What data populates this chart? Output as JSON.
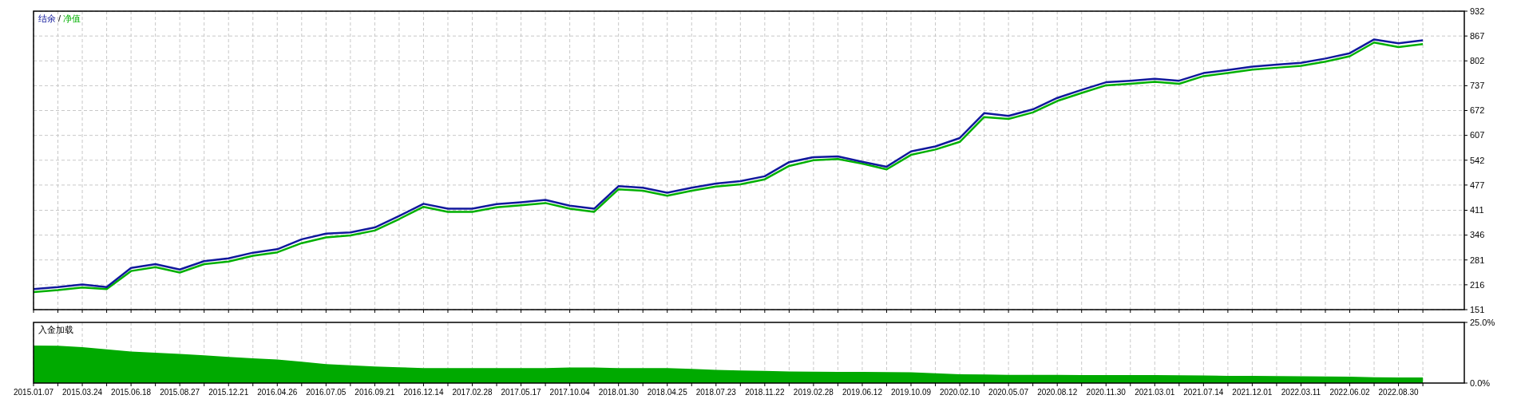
{
  "chart_data": [
    {
      "type": "line",
      "ylim": [
        151,
        932
      ],
      "yticks": [
        151,
        216,
        281,
        346,
        411,
        477,
        542,
        607,
        672,
        737,
        802,
        867,
        932
      ],
      "categories": [
        "2015.01.07",
        null,
        "2015.03.24",
        null,
        "2015.06.18",
        null,
        "2015.08.27",
        null,
        "2015.12.21",
        null,
        "2016.04.26",
        null,
        "2016.07.05",
        null,
        "2016.09.21",
        null,
        "2016.12.14",
        null,
        "2017.02.28",
        null,
        "2017.05.17",
        null,
        "2017.10.04",
        null,
        "2018.01.30",
        null,
        "2018.04.25",
        null,
        "2018.07.23",
        null,
        "2018.11.22",
        null,
        "2019.02.28",
        null,
        "2019.06.12",
        null,
        "2019.10.09",
        null,
        "2020.02.10",
        null,
        "2020.05.07",
        null,
        "2020.08.12",
        null,
        "2020.11.30",
        null,
        "2021.03.01",
        null,
        "2021.07.14",
        null,
        "2021.12.01",
        null,
        "2022.03.11",
        null,
        "2022.06.02",
        null,
        "2022.08.30",
        null
      ],
      "tick_labels": "y",
      "grid": true,
      "line_style": "solid",
      "marker": "none",
      "annotations": [
        "/"
      ],
      "series": [
        {
          "name": "净值",
          "color": "#00b000",
          "values": [
            197,
            202,
            209,
            205,
            252,
            262,
            248,
            270,
            277,
            292,
            301,
            325,
            340,
            345,
            358,
            388,
            420,
            407,
            407,
            419,
            424,
            430,
            415,
            407,
            466,
            462,
            449,
            462,
            473,
            479,
            492,
            527,
            542,
            545,
            533,
            518,
            556,
            570,
            590,
            655,
            650,
            667,
            697,
            718,
            738,
            742,
            747,
            742,
            762,
            770,
            779,
            784,
            789,
            800,
            814,
            850,
            838,
            846
          ]
        },
        {
          "name": "结余",
          "color": "#10189c",
          "values": [
            205,
            210,
            217,
            210,
            260,
            270,
            256,
            278,
            285,
            300,
            309,
            335,
            350,
            353,
            366,
            396,
            428,
            415,
            415,
            427,
            432,
            438,
            423,
            415,
            474,
            470,
            457,
            470,
            481,
            487,
            500,
            537,
            550,
            552,
            538,
            525,
            565,
            578,
            600,
            665,
            658,
            675,
            705,
            726,
            746,
            750,
            755,
            750,
            770,
            778,
            787,
            792,
            797,
            808,
            822,
            858,
            848,
            856
          ]
        }
      ]
    },
    {
      "type": "area",
      "title": "入金加载",
      "ylim": [
        0,
        25
      ],
      "yticks": [
        {
          "value": 0,
          "label": "0.0%"
        },
        {
          "value": 25,
          "label": "25.0%"
        }
      ],
      "categories": [
        "2015.01.07",
        null,
        "2015.03.24",
        null,
        "2015.06.18",
        null,
        "2015.08.27",
        null,
        "2015.12.21",
        null,
        "2016.04.26",
        null,
        "2016.07.05",
        null,
        "2016.09.21",
        null,
        "2016.12.14",
        null,
        "2017.02.28",
        null,
        "2017.05.17",
        null,
        "2017.10.04",
        null,
        "2018.01.30",
        null,
        "2018.04.25",
        null,
        "2018.07.23",
        null,
        "2018.11.22",
        null,
        "2019.02.28",
        null,
        "2019.06.12",
        null,
        "2019.10.09",
        null,
        "2020.02.10",
        null,
        "2020.05.07",
        null,
        "2020.08.12",
        null,
        "2020.11.30",
        null,
        "2021.03.01",
        null,
        "2021.07.14",
        null,
        "2021.12.01",
        null,
        "2022.03.11",
        null,
        "2022.06.02",
        null,
        "2022.08.30",
        null
      ],
      "grid": "x",
      "color": "#00aa00",
      "values": [
        15.5,
        15.4,
        14.8,
        13.9,
        13,
        12.5,
        12,
        11.4,
        10.8,
        10.2,
        9.7,
        8.8,
        7.8,
        7.3,
        6.8,
        6.5,
        6.2,
        6.2,
        6.2,
        6.2,
        6.2,
        6.2,
        6.4,
        6.4,
        6.2,
        6.2,
        6.2,
        5.8,
        5.4,
        5.2,
        5.0,
        4.8,
        4.7,
        4.6,
        4.6,
        4.5,
        4.4,
        4.0,
        3.6,
        3.5,
        3.4,
        3.4,
        3.4,
        3.3,
        3.3,
        3.3,
        3.3,
        3.2,
        3.1,
        3.0,
        3.0,
        2.9,
        2.8,
        2.7,
        2.6,
        2.4,
        2.3,
        2.3
      ]
    }
  ]
}
